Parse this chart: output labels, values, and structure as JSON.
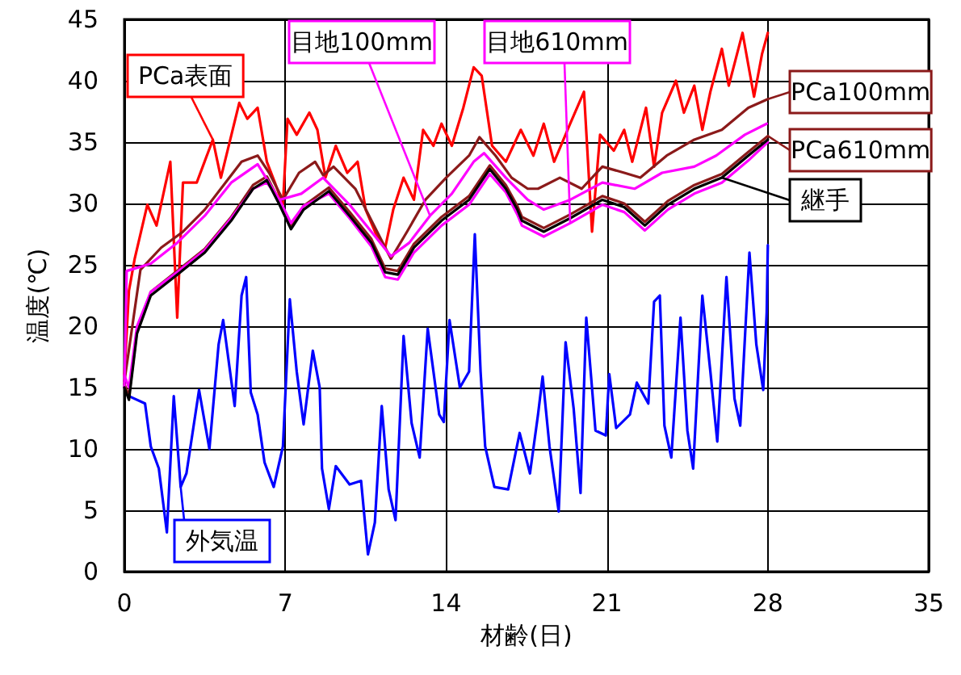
{
  "chart_data": {
    "type": "line",
    "xlabel": "材齢(日)",
    "ylabel": "温度(℃)",
    "xlim": [
      0,
      35
    ],
    "xticks": [
      0,
      7,
      14,
      21,
      28,
      35
    ],
    "ylim": [
      0,
      45
    ],
    "yticks": [
      0,
      5,
      10,
      15,
      20,
      25,
      30,
      35,
      40,
      45
    ],
    "grid": true,
    "legend": "right",
    "marker": "none",
    "line_style": "solid",
    "series": [
      {
        "name": "外気温",
        "color": "#0000ff",
        "x": [
          0.2,
          0.9,
          1.15,
          1.5,
          1.85,
          2.15,
          2.45,
          2.7,
          3.25,
          3.7,
          4.1,
          4.3,
          4.8,
          5.1,
          5.3,
          5.5,
          5.8,
          6.1,
          6.5,
          6.9,
          7.2,
          7.5,
          7.8,
          8.2,
          8.5,
          8.6,
          8.9,
          9.2,
          9.8,
          10.3,
          10.6,
          10.9,
          11.2,
          11.5,
          11.8,
          12.15,
          12.5,
          12.85,
          13.2,
          13.7,
          13.9,
          14.15,
          14.6,
          15.0,
          15.25,
          15.5,
          15.7,
          16.1,
          16.7,
          17.2,
          17.65,
          18.0,
          18.2,
          18.5,
          18.9,
          19.2,
          19.55,
          19.85,
          20.1,
          20.5,
          20.95,
          21.1,
          21.4,
          22.0,
          22.3,
          22.8,
          23.05,
          23.3,
          23.5,
          23.8,
          24.2,
          24.5,
          24.75,
          25.15,
          25.5,
          25.8,
          26.2,
          26.55,
          26.8,
          27.2,
          27.5,
          27.8,
          27.95,
          28.0
        ],
        "values": [
          14.3,
          13.7,
          10.2,
          8.4,
          3.2,
          14.3,
          6.9,
          8,
          14.8,
          10,
          18.5,
          20.5,
          13.5,
          22.5,
          24,
          14.6,
          12.8,
          8.9,
          6.9,
          10.2,
          22.2,
          16.3,
          12,
          18,
          15,
          8.4,
          5.1,
          8.6,
          7.1,
          7.4,
          1.4,
          4,
          13.5,
          6.7,
          4.2,
          19.2,
          12.1,
          9.3,
          19.8,
          12.8,
          12.2,
          20.5,
          15,
          16.3,
          27.5,
          16.3,
          10.2,
          6.9,
          6.7,
          11.3,
          8,
          12.8,
          15.9,
          10.2,
          4.9,
          18.7,
          13.3,
          6.4,
          20.7,
          11.5,
          11.1,
          16.1,
          11.7,
          12.8,
          15.4,
          13.7,
          22,
          22.5,
          11.9,
          9.3,
          20.7,
          11.5,
          8.4,
          22.5,
          16.3,
          10.6,
          24,
          14.1,
          11.9,
          26,
          18.5,
          14.8,
          21.1,
          26.6
        ]
      },
      {
        "name": "PCa表面",
        "color": "#ff0000",
        "x": [
          0,
          0.2,
          0.45,
          1.0,
          1.4,
          2.0,
          2.3,
          2.55,
          3.15,
          3.85,
          4.2,
          5.0,
          5.35,
          5.8,
          6.2,
          6.55,
          6.9,
          7.1,
          7.5,
          8.05,
          8.4,
          8.75,
          9.2,
          9.7,
          10.15,
          10.5,
          11.0,
          11.35,
          11.7,
          12.15,
          12.6,
          13.0,
          13.45,
          13.8,
          14.25,
          14.75,
          15.2,
          15.55,
          16.0,
          16.6,
          17.25,
          17.8,
          18.25,
          18.7,
          19.4,
          20.0,
          20.35,
          20.7,
          21.3,
          21.75,
          22.1,
          22.7,
          23.05,
          23.4,
          24.0,
          24.35,
          24.8,
          25.15,
          25.5,
          26.0,
          26.3,
          26.9,
          27.4,
          27.75,
          28.0
        ],
        "values": [
          16,
          22.9,
          25.5,
          29.9,
          28.2,
          33.4,
          20.7,
          31.7,
          31.7,
          35.2,
          32.1,
          38.2,
          36.9,
          37.8,
          33.4,
          31.7,
          29.9,
          36.9,
          35.6,
          37.4,
          36,
          32.1,
          34.7,
          32.5,
          33.4,
          29.5,
          27.3,
          26.4,
          29.5,
          32.1,
          30.3,
          36,
          34.7,
          36.5,
          34.7,
          37.8,
          41.1,
          40.4,
          34.7,
          33.4,
          36,
          33.9,
          36.5,
          33.4,
          36.5,
          39.1,
          27.7,
          35.6,
          34.3,
          36,
          33.4,
          37.8,
          33,
          37.4,
          40,
          37.4,
          39.6,
          36,
          39.1,
          42.6,
          39.6,
          43.9,
          38.7,
          42.2,
          43.9
        ]
      },
      {
        "name": "PCa100mm",
        "color": "#8b1a1a",
        "x": [
          0,
          0.7,
          1.6,
          2.55,
          3.5,
          4.4,
          5.1,
          5.8,
          6.3,
          6.9,
          7.6,
          8.3,
          8.65,
          9.1,
          10.05,
          11.0,
          11.6,
          12.3,
          13.1,
          14.0,
          15.0,
          15.45,
          16.15,
          16.85,
          17.55,
          18.0,
          18.95,
          19.9,
          20.8,
          21.75,
          22.45,
          23.6,
          24.8,
          26.0,
          27.15,
          28.0
        ],
        "values": [
          15.5,
          24.6,
          26.4,
          27.7,
          29.5,
          31.7,
          33.4,
          33.9,
          32.5,
          30.3,
          32.5,
          33.4,
          32.3,
          33,
          31.2,
          27.7,
          25.5,
          27.7,
          30.3,
          32.1,
          33.9,
          35.4,
          33.9,
          32.1,
          31.2,
          31.2,
          32.1,
          31.2,
          33,
          32.5,
          32.1,
          33.9,
          35.2,
          36,
          37.8,
          38.5
        ]
      },
      {
        "name": "PCa610mm",
        "color": "#8b1a1a",
        "x": [
          0,
          0.2,
          0.55,
          1.15,
          2.3,
          3.5,
          4.65,
          5.6,
          6.2,
          6.75,
          7.25,
          7.8,
          8.9,
          9.8,
          10.75,
          11.35,
          11.9,
          12.6,
          13.8,
          15.0,
          15.9,
          16.6,
          17.1,
          17.3,
          18.25,
          19.4,
          20.8,
          21.75,
          22.65,
          23.65,
          24.8,
          26.0,
          27.15,
          28.0
        ],
        "values": [
          15.3,
          14.3,
          19.7,
          22.8,
          24.5,
          26.3,
          28.9,
          31.5,
          32.2,
          30.2,
          28.2,
          29.8,
          31.3,
          29.3,
          27.1,
          24.7,
          24.5,
          26.7,
          28.9,
          30.6,
          33.1,
          31.5,
          29.8,
          28.9,
          28.0,
          29.1,
          30.6,
          30.0,
          28.5,
          30.2,
          31.5,
          32.4,
          34.2,
          35.5
        ]
      },
      {
        "name": "目地100mm",
        "color": "#ff00ff",
        "x": [
          0,
          0.1,
          1.15,
          2.3,
          3.5,
          4.65,
          5.8,
          6.75,
          7.7,
          8.65,
          9.8,
          10.75,
          11.6,
          12.4,
          13.3,
          14.25,
          15.2,
          15.65,
          16.6,
          17.55,
          18.25,
          19.4,
          20.8,
          22.2,
          23.4,
          24.8,
          25.75,
          27.0,
          27.95
        ],
        "values": [
          15,
          24.5,
          25.1,
          26.8,
          29,
          31.7,
          33.2,
          30.3,
          30.8,
          32.1,
          29.9,
          27.7,
          25.7,
          26.8,
          29,
          30.8,
          33.4,
          34.1,
          32.1,
          30.3,
          29.5,
          30.3,
          31.7,
          31.2,
          32.5,
          33,
          33.9,
          35.6,
          36.5
        ]
      },
      {
        "name": "目地610mm",
        "color": "#ff00ff",
        "x": [
          0,
          0.2,
          0.55,
          1.15,
          2.3,
          3.5,
          4.65,
          5.6,
          6.2,
          6.75,
          7.25,
          7.8,
          8.9,
          9.8,
          10.75,
          11.35,
          11.9,
          12.6,
          13.8,
          15.0,
          15.9,
          16.6,
          17.1,
          17.3,
          18.25,
          19.4,
          20.8,
          21.75,
          22.65,
          23.65,
          24.8,
          26.0,
          27.15,
          28.0
        ],
        "values": [
          16,
          15,
          20,
          22.8,
          24.4,
          26.2,
          28.8,
          31.2,
          31.7,
          30.3,
          28.4,
          29.8,
          30.8,
          28.8,
          26.5,
          24.0,
          23.8,
          26.0,
          28.2,
          29.9,
          32.4,
          30.9,
          29.1,
          28.2,
          27.3,
          28.4,
          29.9,
          29.3,
          27.8,
          29.5,
          30.8,
          31.7,
          33.5,
          35.0
        ]
      },
      {
        "name": "継手",
        "color": "#000000",
        "x": [
          0,
          0.2,
          0.55,
          1.15,
          2.3,
          3.5,
          4.65,
          5.6,
          6.2,
          6.75,
          7.25,
          7.8,
          8.9,
          9.8,
          10.75,
          11.35,
          11.9,
          12.6,
          13.8,
          15.0,
          15.9,
          16.6,
          17.1,
          17.3,
          18.25,
          19.4,
          20.8,
          21.75,
          22.65,
          23.65,
          24.8,
          26.0,
          27.15,
          28.0
        ],
        "values": [
          15,
          14,
          19.4,
          22.5,
          24.2,
          26,
          28.6,
          31.2,
          31.9,
          29.9,
          27.9,
          29.5,
          31,
          29,
          26.8,
          24.4,
          24.2,
          26.4,
          28.6,
          30.3,
          32.8,
          31.2,
          29.5,
          28.6,
          27.7,
          28.8,
          30.3,
          29.7,
          28.2,
          29.9,
          31.2,
          32.1,
          33.9,
          35.2
        ]
      }
    ]
  }
}
